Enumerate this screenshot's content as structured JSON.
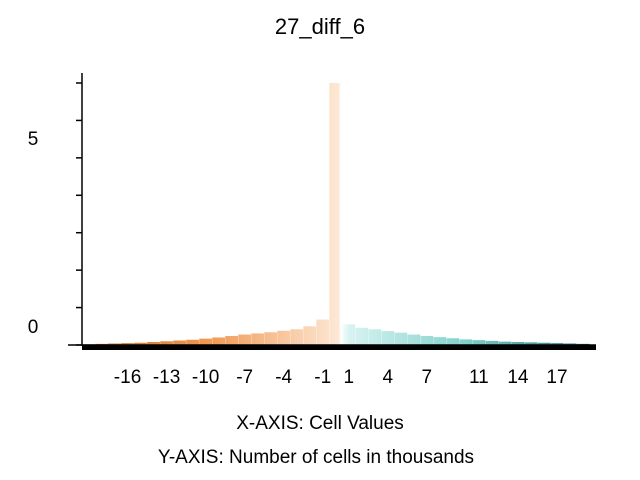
{
  "chart_data": {
    "type": "bar",
    "title": "27_diff_6",
    "xlabel": "X-AXIS: Cell Values",
    "ylabel": "Y-AXIS: Number of cells in thousands",
    "x_ticks": [
      -16,
      -13,
      -10,
      -7,
      -4,
      -1,
      1,
      4,
      7,
      11,
      14,
      17
    ],
    "y_tick_labels": [
      0,
      5
    ],
    "xlim": [
      -19.5,
      20
    ],
    "ylim": [
      0,
      7
    ],
    "grid": false,
    "legend": "none",
    "colors": {
      "negative": "#f5a46a",
      "positive": "#6cc9c3",
      "axis": "#000000"
    },
    "x": [
      -19,
      -18,
      -17,
      -16,
      -15,
      -14,
      -13,
      -12,
      -11,
      -10,
      -9,
      -8,
      -7,
      -6,
      -5,
      -4,
      -3,
      -2,
      -1,
      0,
      1,
      2,
      3,
      4,
      5,
      6,
      7,
      8,
      9,
      10,
      11,
      12,
      13,
      14,
      15,
      16,
      17,
      18,
      19
    ],
    "values": [
      0.02,
      0.03,
      0.04,
      0.05,
      0.06,
      0.08,
      0.1,
      0.12,
      0.14,
      0.17,
      0.2,
      0.24,
      0.28,
      0.31,
      0.34,
      0.38,
      0.42,
      0.5,
      0.68,
      7.0,
      0.55,
      0.46,
      0.42,
      0.37,
      0.33,
      0.28,
      0.24,
      0.21,
      0.18,
      0.15,
      0.13,
      0.11,
      0.09,
      0.08,
      0.07,
      0.06,
      0.05,
      0.04,
      0.03
    ]
  }
}
